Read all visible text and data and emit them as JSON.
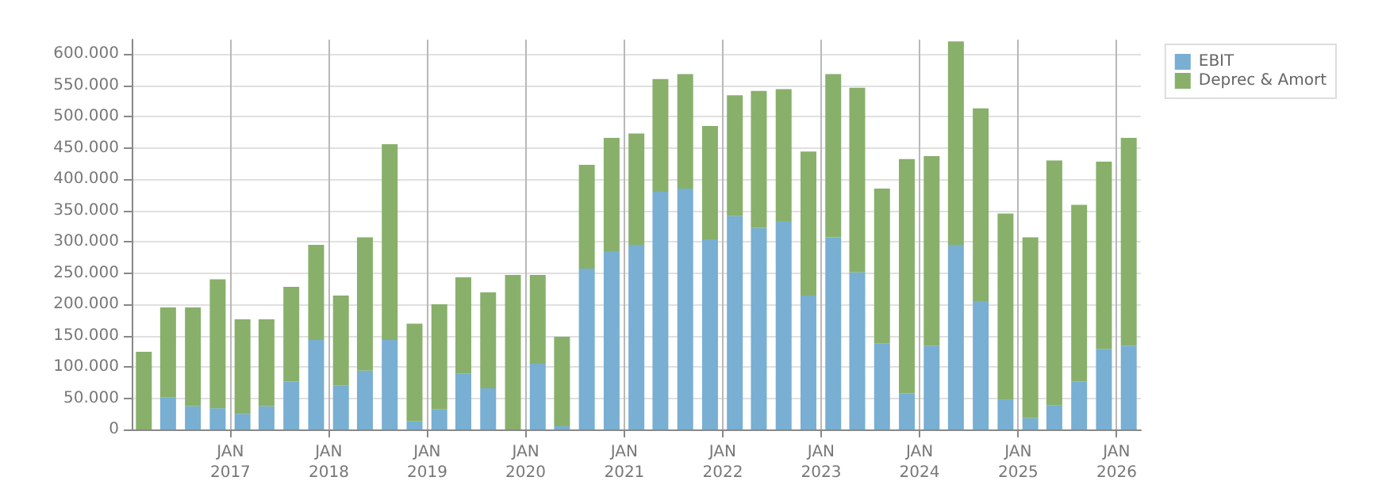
{
  "chart_data": {
    "type": "bar",
    "stacked": true,
    "x": [
      "2016-02-15",
      "2016-05-15",
      "2016-08-15",
      "2016-11-15",
      "2017-02-15",
      "2017-05-15",
      "2017-08-15",
      "2017-11-15",
      "2018-02-15",
      "2018-05-15",
      "2018-08-15",
      "2018-11-15",
      "2019-02-15",
      "2019-05-15",
      "2019-08-15",
      "2019-11-15",
      "2020-02-15",
      "2020-05-15",
      "2020-08-15",
      "2020-11-15",
      "2021-02-15",
      "2021-05-15",
      "2021-08-15",
      "2021-11-15",
      "2022-02-15",
      "2022-05-15",
      "2022-08-15",
      "2022-11-15",
      "2023-02-15",
      "2023-05-15",
      "2023-08-15",
      "2023-11-15",
      "2024-02-15",
      "2024-05-15",
      "2024-08-15",
      "2024-11-15",
      "2025-02-15",
      "2025-05-15",
      "2025-08-15",
      "2025-11-15",
      "2026-02-15"
    ],
    "series": [
      {
        "name": "EBIT",
        "color": "#78afd2",
        "values": [
          0,
          51000,
          37000,
          34000,
          25000,
          37000,
          77000,
          143000,
          70000,
          94000,
          143000,
          13000,
          32000,
          89000,
          66000,
          0,
          105000,
          5000,
          257000,
          285000,
          295000,
          380000,
          385000,
          304000,
          341000,
          322000,
          333000,
          214000,
          307000,
          251000,
          137000,
          58000,
          134000,
          295000,
          205000,
          48000,
          18000,
          39000,
          77000,
          129000,
          134000
        ]
      },
      {
        "name": "Deprec & Amort",
        "color": "#88b06b",
        "values": [
          124000,
          144000,
          158000,
          206000,
          151000,
          139000,
          151000,
          152000,
          144000,
          213000,
          313000,
          156000,
          168000,
          154000,
          153000,
          247000,
          142000,
          143000,
          166000,
          181000,
          178000,
          180000,
          183000,
          181000,
          193000,
          219000,
          211000,
          230000,
          261000,
          295000,
          248000,
          374000,
          303000,
          325000,
          308000,
          297000,
          289000,
          391000,
          282000,
          299000,
          332000
        ]
      }
    ],
    "xlim": [
      "2016-01",
      "2026-04"
    ],
    "xticks": [
      {
        "value": "2017-01",
        "label": "JAN\n2017"
      },
      {
        "value": "2018-01",
        "label": "JAN\n2018"
      },
      {
        "value": "2019-01",
        "label": "JAN\n2019"
      },
      {
        "value": "2020-01",
        "label": "JAN\n2020"
      },
      {
        "value": "2021-01",
        "label": "JAN\n2021"
      },
      {
        "value": "2022-01",
        "label": "JAN\n2022"
      },
      {
        "value": "2023-01",
        "label": "JAN\n2023"
      },
      {
        "value": "2024-01",
        "label": "JAN\n2024"
      },
      {
        "value": "2025-01",
        "label": "JAN\n2025"
      },
      {
        "value": "2026-01",
        "label": "JAN\n2026"
      }
    ],
    "ylim": [
      0,
      623000
    ],
    "yticks": [
      0,
      {
        "value": 50000,
        "label": "50.000"
      },
      {
        "value": 100000,
        "label": "100.000"
      },
      {
        "value": 150000,
        "label": "150.000"
      },
      {
        "value": 200000,
        "label": "200.000"
      },
      {
        "value": 250000,
        "label": "250.000"
      },
      {
        "value": 300000,
        "label": "300.000"
      },
      {
        "value": 350000,
        "label": "350.000"
      },
      {
        "value": 400000,
        "label": "400.000"
      },
      {
        "value": 450000,
        "label": "450.000"
      },
      {
        "value": 500000,
        "label": "500.000"
      },
      {
        "value": 550000,
        "label": "550.000"
      },
      {
        "value": 600000,
        "label": "600.000"
      }
    ],
    "grid": true,
    "legend": "top right"
  }
}
